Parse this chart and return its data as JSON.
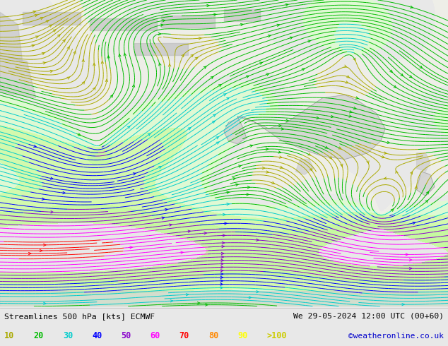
{
  "title_left": "Streamlines 500 hPa [kts] ECMWF",
  "title_right": "We 29-05-2024 12:00 UTC (00+60)",
  "credit": "©weatheronline.co.uk",
  "legend_values": [
    "10",
    "20",
    "30",
    "40",
    "50",
    "60",
    "70",
    "80",
    "90",
    ">100"
  ],
  "legend_colors": [
    "#aaaa00",
    "#00bb00",
    "#00cccc",
    "#0000ff",
    "#8800cc",
    "#ff00ff",
    "#ff0000",
    "#ff8800",
    "#ffff00",
    "#ffffff"
  ],
  "bg_color": "#e8e8e8",
  "figsize": [
    6.34,
    4.9
  ],
  "dpi": 100,
  "bottom_bar_color": "#ffffff",
  "credit_color": "#0000cc",
  "speed_bounds": [
    0,
    10,
    20,
    30,
    40,
    50,
    60,
    70,
    80,
    90,
    300
  ]
}
